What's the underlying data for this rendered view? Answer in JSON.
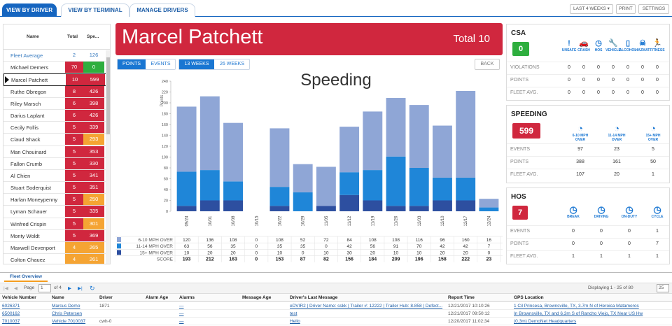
{
  "tabs": [
    "VIEW BY DRIVER",
    "VIEW BY TERMINAL",
    "MANAGE DRIVERS"
  ],
  "top_buttons": {
    "range": "LAST 4 WEEKS ▾",
    "print": "PRINT",
    "settings": "SETTINGS"
  },
  "driver_table": {
    "headers": [
      "Name",
      "Total",
      "Spe..."
    ],
    "fleet": {
      "name": "Fleet Average",
      "total": "2",
      "speeding": "126"
    },
    "rows": [
      {
        "name": "Michael Demers",
        "total": "70",
        "speeding": "0",
        "tc": "#d0273e",
        "sc": "#2eae3e"
      },
      {
        "name": "Marcel Patchett",
        "total": "10",
        "speeding": "599",
        "tc": "#d0273e",
        "sc": "#d0273e"
      },
      {
        "name": "Ruthe Obregon",
        "total": "8",
        "speeding": "426",
        "tc": "#d0273e",
        "sc": "#d0273e"
      },
      {
        "name": "Riley Marsch",
        "total": "6",
        "speeding": "398",
        "tc": "#d0273e",
        "sc": "#d0273e"
      },
      {
        "name": "Darius Laplant",
        "total": "6",
        "speeding": "426",
        "tc": "#d0273e",
        "sc": "#d0273e"
      },
      {
        "name": "Cecily Follis",
        "total": "5",
        "speeding": "339",
        "tc": "#d0273e",
        "sc": "#d0273e"
      },
      {
        "name": "Claud Shack",
        "total": "5",
        "speeding": "293",
        "tc": "#d0273e",
        "sc": "#f5a433"
      },
      {
        "name": "Man Chouinard",
        "total": "5",
        "speeding": "353",
        "tc": "#d0273e",
        "sc": "#d0273e"
      },
      {
        "name": "Fallon Crumb",
        "total": "5",
        "speeding": "330",
        "tc": "#d0273e",
        "sc": "#d0273e"
      },
      {
        "name": "Al Chien",
        "total": "5",
        "speeding": "341",
        "tc": "#d0273e",
        "sc": "#d0273e"
      },
      {
        "name": "Stuart Soderquist",
        "total": "5",
        "speeding": "351",
        "tc": "#d0273e",
        "sc": "#d0273e"
      },
      {
        "name": "Harlan Moneypenny",
        "total": "5",
        "speeding": "250",
        "tc": "#d0273e",
        "sc": "#f5a433"
      },
      {
        "name": "Lyman Schauer",
        "total": "5",
        "speeding": "335",
        "tc": "#d0273e",
        "sc": "#d0273e"
      },
      {
        "name": "Winfred Crispin",
        "total": "5",
        "speeding": "301",
        "tc": "#d0273e",
        "sc": "#f5a433"
      },
      {
        "name": "Monty Woldt",
        "total": "5",
        "speeding": "369",
        "tc": "#d0273e",
        "sc": "#d0273e"
      },
      {
        "name": "Maxwell Devenport",
        "total": "4",
        "speeding": "265",
        "tc": "#f5a433",
        "sc": "#f5a433"
      },
      {
        "name": "Colton Chauez",
        "total": "4",
        "speeding": "261",
        "tc": "#f5a433",
        "sc": "#f5a433"
      }
    ]
  },
  "driver_banner": {
    "name": "Marcel Patchett",
    "total": "Total 10"
  },
  "toggles": {
    "points": "POINTS",
    "events": "EVENTS",
    "w13": "13 WEEKS",
    "w26": "26 WEEKS",
    "back": "BACK"
  },
  "chart_data": {
    "type": "bar",
    "stacked": true,
    "title": "Speeding",
    "ylabel": "Points",
    "ylim": [
      0,
      240
    ],
    "yticks": [
      0,
      20,
      40,
      60,
      80,
      100,
      120,
      140,
      160,
      180,
      200,
      220,
      240
    ],
    "categories": [
      "09/24",
      "10/01",
      "10/08",
      "10/15",
      "10/22",
      "10/29",
      "11/05",
      "11/12",
      "11/19",
      "11/26",
      "12/03",
      "12/10",
      "12/17",
      "12/24"
    ],
    "series": [
      {
        "name": "6-10 MPH OVER",
        "color": "#8fa6d6",
        "values": [
          120,
          136,
          108,
          0,
          108,
          52,
          72,
          84,
          108,
          108,
          116,
          96,
          160,
          16
        ]
      },
      {
        "name": "11-14 MPH OVER",
        "color": "#1f86d8",
        "values": [
          63,
          56,
          35,
          0,
          35,
          35,
          0,
          42,
          56,
          91,
          70,
          42,
          42,
          7
        ]
      },
      {
        "name": "15+ MPH OVER",
        "color": "#2d4fa0",
        "values": [
          10,
          20,
          20,
          0,
          10,
          0,
          10,
          30,
          20,
          10,
          10,
          20,
          20,
          0
        ]
      }
    ],
    "score_label": "SCORE",
    "score": [
      193,
      212,
      163,
      0,
      153,
      87,
      82,
      156,
      184,
      209,
      196,
      158,
      222,
      23
    ]
  },
  "csa": {
    "title": "CSA",
    "badge": "0",
    "cols": [
      {
        "icon": "exclamation-icon",
        "glyph": "!",
        "label": "UNSAFE"
      },
      {
        "icon": "crash-icon",
        "glyph": "🚗",
        "label": "CRASH"
      },
      {
        "icon": "clock-icon",
        "glyph": "◷",
        "label": "HOS"
      },
      {
        "icon": "wrench-icon",
        "glyph": "🔧",
        "label": "VEHICLE"
      },
      {
        "icon": "cup-icon",
        "glyph": "▯",
        "label": "ALCOHOL"
      },
      {
        "icon": "skull-icon",
        "glyph": "☠",
        "label": "HAZMAT"
      },
      {
        "icon": "runner-icon",
        "glyph": "🏃",
        "label": "FITNESS"
      }
    ],
    "rows": [
      {
        "label": "VIOLATIONS",
        "values": [
          "0",
          "0",
          "0",
          "0",
          "0",
          "0",
          "0"
        ]
      },
      {
        "label": "POINTS",
        "values": [
          "0",
          "0",
          "0",
          "0",
          "0",
          "0",
          "0"
        ]
      },
      {
        "label": "FLEET AVG.",
        "values": [
          "0",
          "0",
          "0",
          "0",
          "0",
          "0",
          "0"
        ]
      }
    ]
  },
  "speeding": {
    "title": "SPEEDING",
    "badge": "599",
    "cols": [
      {
        "icon": "speedometer-icon",
        "label": "6-10 MPH OVER"
      },
      {
        "icon": "speedometer-icon",
        "label": "11-14 MPH OVER"
      },
      {
        "icon": "speedometer-icon",
        "label": "15+ MPH OVER"
      }
    ],
    "rows": [
      {
        "label": "EVENTS",
        "values": [
          "97",
          "23",
          "5"
        ]
      },
      {
        "label": "POINTS",
        "values": [
          "388",
          "161",
          "50"
        ]
      },
      {
        "label": "FLEET AVG.",
        "values": [
          "107",
          "20",
          "1"
        ]
      }
    ]
  },
  "hos": {
    "title": "HOS",
    "badge": "7",
    "cols": [
      {
        "icon": "clock-icon",
        "label": "BREAK"
      },
      {
        "icon": "clock-icon",
        "label": "DRIVING"
      },
      {
        "icon": "clock-icon",
        "label": "ON-DUTY"
      },
      {
        "icon": "clock-icon",
        "label": "CYCLE"
      }
    ],
    "rows": [
      {
        "label": "EVENTS",
        "values": [
          "0",
          "0",
          "0",
          "1"
        ]
      },
      {
        "label": "POINTS",
        "values": [
          "0",
          "0",
          "0",
          "7"
        ]
      },
      {
        "label": "FLEET AVG.",
        "values": [
          "1",
          "1",
          "1",
          "1"
        ]
      }
    ]
  },
  "fleet_overview": {
    "tab": "Fleet Overview",
    "page_label": "Page",
    "page": "1",
    "of_pages": "of 4",
    "displaying": "Displaying 1 - 25 of 80",
    "per_page": "25",
    "headers": [
      "Vehicle Number",
      "Name",
      "Driver",
      "Alarm Age",
      "Alarms",
      "Message Age",
      "Driver's Last Message",
      "Report Time",
      "GPS Location"
    ],
    "rows": [
      [
        "6026371",
        "Marcus Demo",
        "1871",
        "",
        "—",
        "",
        "eDVIR2 | Driver Name: sskk | Trailer #: 12222 | Trailer Hub: 8.858 | Defect...",
        "12/21/2017 10:10:26",
        "1 Cil Princesa, Brownsville, TX, 3.7m N of Heroica Matamoros"
      ],
      [
        "6500162",
        "Chris Petersen",
        "",
        "",
        "—",
        "",
        "test",
        "12/21/2017 09:50:12",
        "In Brownsville, TX and 6.3m S of Rancho Viejo, TX Near US Hw"
      ],
      [
        "7010037",
        "Vehicle 7010037",
        "cwh-0",
        "",
        "—",
        "",
        "Hello",
        "12/20/2017 11:02:34",
        "(0.3m) DemoNet Headquarters"
      ]
    ]
  }
}
